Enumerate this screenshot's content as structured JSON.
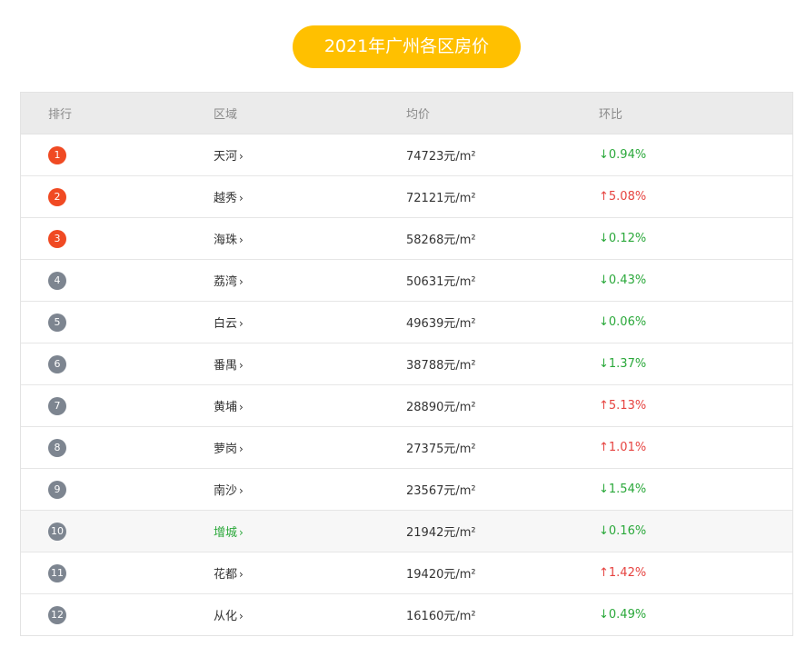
{
  "title": "2021年广州各区房价",
  "header": {
    "rank": "排行",
    "area": "区域",
    "price": "均价",
    "change": "环比"
  },
  "rows": [
    {
      "rank": "1",
      "area": "天河",
      "price": "74723元/m²",
      "change": "↓0.94%",
      "dir": "down",
      "top": true
    },
    {
      "rank": "2",
      "area": "越秀",
      "price": "72121元/m²",
      "change": "↑5.08%",
      "dir": "up",
      "top": true
    },
    {
      "rank": "3",
      "area": "海珠",
      "price": "58268元/m²",
      "change": "↓0.12%",
      "dir": "down",
      "top": true
    },
    {
      "rank": "4",
      "area": "荔湾",
      "price": "50631元/m²",
      "change": "↓0.43%",
      "dir": "down",
      "top": false
    },
    {
      "rank": "5",
      "area": "白云",
      "price": "49639元/m²",
      "change": "↓0.06%",
      "dir": "down",
      "top": false
    },
    {
      "rank": "6",
      "area": "番禺",
      "price": "38788元/m²",
      "change": "↓1.37%",
      "dir": "down",
      "top": false
    },
    {
      "rank": "7",
      "area": "黄埔",
      "price": "28890元/m²",
      "change": "↑5.13%",
      "dir": "up",
      "top": false
    },
    {
      "rank": "8",
      "area": "萝岗",
      "price": "27375元/m²",
      "change": "↑1.01%",
      "dir": "up",
      "top": false
    },
    {
      "rank": "9",
      "area": "南沙",
      "price": "23567元/m²",
      "change": "↓1.54%",
      "dir": "down",
      "top": false
    },
    {
      "rank": "10",
      "area": "增城",
      "price": "21942元/m²",
      "change": "↓0.16%",
      "dir": "down",
      "top": false,
      "hover": true
    },
    {
      "rank": "11",
      "area": "花都",
      "price": "19420元/m²",
      "change": "↑1.42%",
      "dir": "up",
      "top": false
    },
    {
      "rank": "12",
      "area": "从化",
      "price": "16160元/m²",
      "change": "↓0.49%",
      "dir": "down",
      "top": false
    }
  ],
  "chevron": "›",
  "colors": {
    "title_bg": "#ffc000",
    "top_badge": "#f04a23",
    "normal_badge": "#7d8590",
    "down": "#2aa83a",
    "up": "#e64340"
  },
  "icons": {
    "chevron": "chevron-right-icon"
  }
}
